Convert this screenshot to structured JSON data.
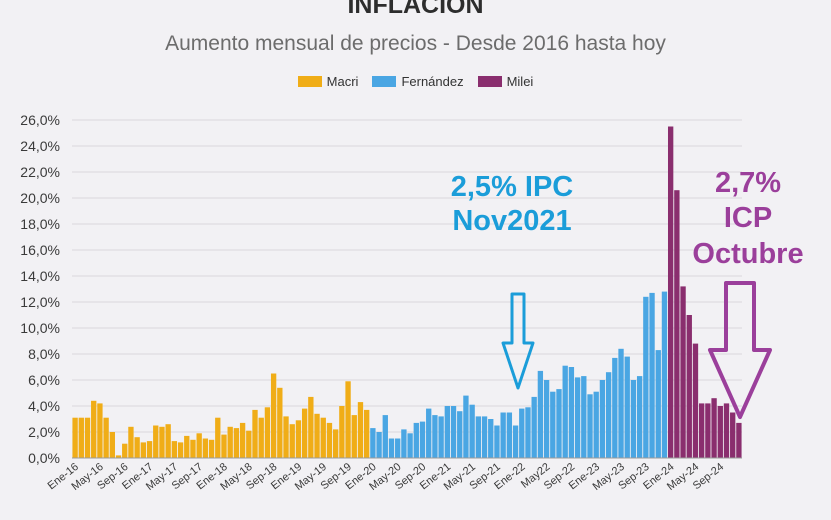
{
  "chart_data": {
    "type": "bar",
    "title": "INFLACIÓN",
    "subtitle": "Aumento mensual de precios - Desde 2016 hasta hoy",
    "ylim": [
      0,
      26
    ],
    "y_ticks": [
      "0,0%",
      "2,0%",
      "4,0%",
      "6,0%",
      "8,0%",
      "10,0%",
      "12,0%",
      "14,0%",
      "16,0%",
      "18,0%",
      "20,0%",
      "22,0%",
      "24,0%",
      "26,0%"
    ],
    "x_ticks": [
      "Ene-16",
      "May-16",
      "Sep-16",
      "Ene-17",
      "May-17",
      "Sep-17",
      "Ene-18",
      "May-18",
      "Sep-18",
      "Ene-19",
      "May-19",
      "Sep-19",
      "Ene-20",
      "May-20",
      "Sep-20",
      "Ene-21",
      "May-21",
      "Sep-21",
      "Ene-22",
      "May22",
      "Sep-22",
      "Ene-23",
      "May-23",
      "Sep-23",
      "Ene-24",
      "May-24",
      "Sep-24"
    ],
    "tick_every": 4,
    "grid": true,
    "legend_position": "top-center",
    "series": [
      {
        "name": "Macri",
        "color": "#f0ad17",
        "values": [
          3.1,
          3.1,
          3.1,
          4.4,
          4.2,
          3.1,
          2.0,
          0.2,
          1.1,
          2.4,
          1.6,
          1.2,
          1.3,
          2.5,
          2.4,
          2.6,
          1.3,
          1.2,
          1.7,
          1.4,
          1.9,
          1.5,
          1.4,
          3.1,
          1.8,
          2.4,
          2.3,
          2.7,
          2.1,
          3.7,
          3.1,
          3.9,
          6.5,
          5.4,
          3.2,
          2.6,
          2.9,
          3.8,
          4.7,
          3.4,
          3.1,
          2.7,
          2.2,
          4.0,
          5.9,
          3.3,
          4.3,
          3.7
        ]
      },
      {
        "name": "Fernández",
        "color": "#4aa6e3",
        "values": [
          2.3,
          2.0,
          3.3,
          1.5,
          1.5,
          2.2,
          1.9,
          2.7,
          2.8,
          3.8,
          3.3,
          3.2,
          4.0,
          4.0,
          3.6,
          4.8,
          4.1,
          3.2,
          3.2,
          3.0,
          2.5,
          3.5,
          3.5,
          2.5,
          3.8,
          3.9,
          4.7,
          6.7,
          6.0,
          5.1,
          5.3,
          7.1,
          7.0,
          6.2,
          6.3,
          4.9,
          5.1,
          6.0,
          6.6,
          7.7,
          8.4,
          7.8,
          6.0,
          6.3,
          12.4,
          12.7,
          8.3,
          12.8
        ]
      },
      {
        "name": "Milei",
        "color": "#8a2e6e",
        "values": [
          25.5,
          20.6,
          13.2,
          11.0,
          8.8,
          4.2,
          4.2,
          4.6,
          4.0,
          4.2,
          3.5,
          2.7
        ]
      }
    ],
    "annotations": [
      {
        "line1": "2,5% IPC",
        "line2": "Nov2021",
        "color": "#1b9dd9"
      },
      {
        "line1": "2,7%",
        "line2": "ICP",
        "line3": "Octubre",
        "color": "#9b3f9b"
      }
    ]
  }
}
